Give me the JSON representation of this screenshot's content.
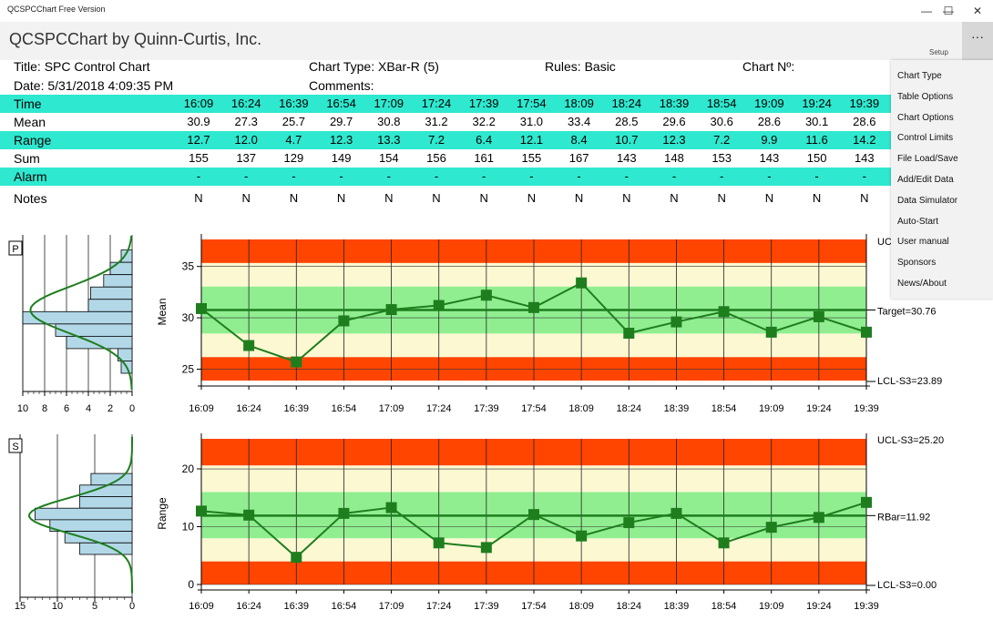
{
  "window": {
    "title": "QCSPCChart Free Version",
    "min_glyph": "—",
    "max_glyph": "☐",
    "close_glyph": "✕"
  },
  "appbar": {
    "title": "QCSPCChart by Quinn-Curtis, Inc.",
    "setup_label": "Setup",
    "more_glyph": "···"
  },
  "header": {
    "title": "Title: SPC Control Chart",
    "chart_type": "Chart Type: XBar-R (5)",
    "rules": "Rules: Basic",
    "chart_no": "Chart Nº:",
    "date": "Date: 5/31/2018 4:09:35 PM",
    "comments": "Comments:"
  },
  "table": {
    "rows": [
      {
        "label": "Time",
        "teal": true,
        "values": [
          "16:09",
          "16:24",
          "16:39",
          "16:54",
          "17:09",
          "17:24",
          "17:39",
          "17:54",
          "18:09",
          "18:24",
          "18:39",
          "18:54",
          "19:09",
          "19:24",
          "19:39"
        ]
      },
      {
        "label": "Mean",
        "teal": false,
        "values": [
          "30.9",
          "27.3",
          "25.7",
          "29.7",
          "30.8",
          "31.2",
          "32.2",
          "31.0",
          "33.4",
          "28.5",
          "29.6",
          "30.6",
          "28.6",
          "30.1",
          "28.6"
        ]
      },
      {
        "label": "Range",
        "teal": true,
        "values": [
          "12.7",
          "12.0",
          "4.7",
          "12.3",
          "13.3",
          "7.2",
          "6.4",
          "12.1",
          "8.4",
          "10.7",
          "12.3",
          "7.2",
          "9.9",
          "11.6",
          "14.2"
        ]
      },
      {
        "label": "Sum",
        "teal": false,
        "values": [
          "155",
          "137",
          "129",
          "149",
          "154",
          "156",
          "161",
          "155",
          "167",
          "143",
          "148",
          "153",
          "143",
          "150",
          "143"
        ]
      },
      {
        "label": "Alarm",
        "teal": true,
        "values": [
          "-",
          "-",
          "-",
          "-",
          "-",
          "-",
          "-",
          "-",
          "-",
          "-",
          "-",
          "-",
          "-",
          "-",
          "-"
        ]
      },
      {
        "label": "Notes",
        "teal": false,
        "values": [
          "N",
          "N",
          "N",
          "N",
          "N",
          "N",
          "N",
          "N",
          "N",
          "N",
          "N",
          "N",
          "N",
          "N",
          "N"
        ]
      }
    ]
  },
  "menu": {
    "items": [
      "Chart Type",
      "Table Options",
      "Chart Options",
      "Control Limits",
      "File Load/Save",
      "Add/Edit Data",
      "Data Simulator",
      "Auto-Start",
      "User manual",
      "Sponsors",
      "News/About"
    ]
  },
  "colors": {
    "zone_red": "#ff4500",
    "zone_cream": "#fcf8d2",
    "zone_green": "#90ee90",
    "series": "#1e7e1e",
    "teal": "#2ee8cf",
    "hist_fill": "#b2d8e8"
  },
  "chart_data": [
    {
      "type": "line",
      "badge": "P",
      "ylabel": "Mean",
      "ylim": [
        23.89,
        37.63
      ],
      "yticks": [
        25,
        30,
        35
      ],
      "categories": [
        "16:09",
        "16:24",
        "16:39",
        "16:54",
        "17:09",
        "17:24",
        "17:39",
        "17:54",
        "18:09",
        "18:24",
        "18:39",
        "18:54",
        "19:09",
        "19:24",
        "19:39"
      ],
      "values": [
        30.9,
        27.3,
        25.7,
        29.7,
        30.8,
        31.2,
        32.2,
        31.0,
        33.4,
        28.5,
        29.6,
        30.6,
        28.6,
        30.1,
        28.6
      ],
      "center": 30.76,
      "ucl": 37.63,
      "lcl": 23.89,
      "labels": {
        "ucl": "UCL",
        "center": "Target=30.76",
        "lcl": "LCL-S3=23.89"
      },
      "zones": [
        {
          "from": 23.89,
          "to": 26.18,
          "color": "zone_red"
        },
        {
          "from": 26.18,
          "to": 28.47,
          "color": "zone_cream"
        },
        {
          "from": 28.47,
          "to": 33.05,
          "color": "zone_green"
        },
        {
          "from": 33.05,
          "to": 35.34,
          "color": "zone_cream"
        },
        {
          "from": 35.34,
          "to": 37.63,
          "color": "zone_red"
        }
      ],
      "histogram": {
        "xticks": [
          10,
          8,
          6,
          4,
          2,
          0
        ],
        "xlim": [
          0,
          10
        ],
        "bins": [
          {
            "from": 35.4,
            "to": 36.6,
            "count": 1
          },
          {
            "from": 34.2,
            "to": 35.4,
            "count": 2
          },
          {
            "from": 33.0,
            "to": 34.2,
            "count": 2.6
          },
          {
            "from": 31.8,
            "to": 33.0,
            "count": 3.8
          },
          {
            "from": 30.6,
            "to": 31.8,
            "count": 4
          },
          {
            "from": 29.4,
            "to": 30.6,
            "count": 10
          },
          {
            "from": 28.2,
            "to": 29.4,
            "count": 7
          },
          {
            "from": 27.0,
            "to": 28.2,
            "count": 6
          },
          {
            "from": 25.8,
            "to": 27.0,
            "count": 1.3
          },
          {
            "from": 24.6,
            "to": 25.8,
            "count": 1
          }
        ]
      }
    },
    {
      "type": "line",
      "badge": "S",
      "ylabel": "Range",
      "ylim": [
        0,
        25.2
      ],
      "yticks": [
        0,
        10,
        20
      ],
      "categories": [
        "16:09",
        "16:24",
        "16:39",
        "16:54",
        "17:09",
        "17:24",
        "17:39",
        "17:54",
        "18:09",
        "18:24",
        "18:39",
        "18:54",
        "19:09",
        "19:24",
        "19:39"
      ],
      "values": [
        12.7,
        12.0,
        4.7,
        12.3,
        13.3,
        7.2,
        6.4,
        12.1,
        8.4,
        10.7,
        12.3,
        7.2,
        9.9,
        11.6,
        14.2
      ],
      "center": 11.92,
      "ucl": 25.2,
      "lcl": 0,
      "labels": {
        "ucl": "UCL-S3=25.20",
        "center": "RBar=11.92",
        "lcl": "LCL-S3=0.00"
      },
      "zones": [
        {
          "from": 0,
          "to": 4,
          "color": "zone_red"
        },
        {
          "from": 4,
          "to": 8,
          "color": "zone_cream"
        },
        {
          "from": 8,
          "to": 16,
          "color": "zone_green"
        },
        {
          "from": 16,
          "to": 20.6,
          "color": "zone_cream"
        },
        {
          "from": 20.6,
          "to": 25.2,
          "color": "zone_red"
        }
      ],
      "histogram": {
        "xticks": [
          15,
          10,
          5,
          0
        ],
        "xlim": [
          0,
          15
        ],
        "bins": [
          {
            "from": 17.2,
            "to": 19.2,
            "count": 5.5
          },
          {
            "from": 15.2,
            "to": 17.2,
            "count": 7
          },
          {
            "from": 13.2,
            "to": 15.2,
            "count": 7
          },
          {
            "from": 11.2,
            "to": 13.2,
            "count": 13
          },
          {
            "from": 9.2,
            "to": 11.2,
            "count": 11
          },
          {
            "from": 7.2,
            "to": 9.2,
            "count": 9
          },
          {
            "from": 5.2,
            "to": 7.2,
            "count": 7
          }
        ]
      }
    }
  ]
}
